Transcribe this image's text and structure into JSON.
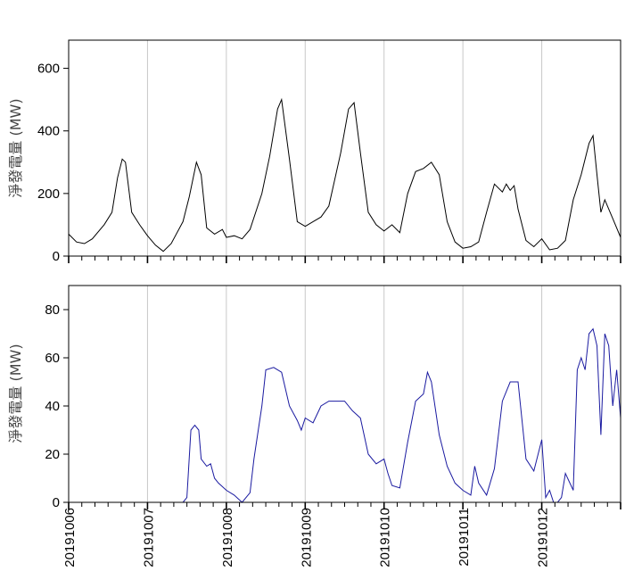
{
  "chart_data": [
    {
      "type": "line",
      "ylabel": "淨發電量 (MW)",
      "ylim": [
        0,
        690
      ],
      "yticks": [
        0,
        200,
        400,
        600
      ],
      "xlim": [
        0,
        7
      ],
      "grid": "vertical",
      "color": "#000000",
      "series": [
        {
          "x": [
            0,
            0.1,
            0.2,
            0.3,
            0.45,
            0.55,
            0.62,
            0.68,
            0.72,
            0.8,
            0.9,
            1.0,
            1.1,
            1.2,
            1.3,
            1.45,
            1.53,
            1.62,
            1.68,
            1.75,
            1.85,
            1.95,
            2.0,
            2.1,
            2.2,
            2.3,
            2.45,
            2.55,
            2.65,
            2.7,
            2.8,
            2.9,
            3.0,
            3.1,
            3.2,
            3.3,
            3.45,
            3.55,
            3.62,
            3.7,
            3.8,
            3.9,
            4.0,
            4.1,
            4.2,
            4.3,
            4.4,
            4.5,
            4.6,
            4.7,
            4.8,
            4.9,
            5.0,
            5.1,
            5.2,
            5.3,
            5.4,
            5.5,
            5.55,
            5.6,
            5.65,
            5.7,
            5.8,
            5.9,
            6.0,
            6.1,
            6.2,
            6.3,
            6.4,
            6.5,
            6.6,
            6.65,
            6.7,
            6.75,
            6.8,
            6.9,
            7.0
          ],
          "values": [
            70,
            45,
            40,
            55,
            100,
            140,
            250,
            310,
            300,
            140,
            100,
            65,
            35,
            15,
            40,
            110,
            190,
            300,
            260,
            90,
            70,
            85,
            60,
            65,
            55,
            85,
            200,
            320,
            470,
            500,
            310,
            110,
            95,
            110,
            125,
            160,
            330,
            470,
            490,
            330,
            140,
            100,
            80,
            100,
            75,
            200,
            270,
            280,
            300,
            260,
            110,
            45,
            25,
            30,
            45,
            140,
            230,
            205,
            230,
            210,
            225,
            150,
            50,
            30,
            55,
            20,
            25,
            50,
            180,
            260,
            360,
            385,
            260,
            140,
            180,
            120,
            60
          ]
        }
      ]
    },
    {
      "type": "line",
      "ylabel": "淨發電量 (MW)",
      "ylim": [
        0,
        90
      ],
      "yticks": [
        0,
        20,
        40,
        60,
        80
      ],
      "xlim": [
        0,
        7
      ],
      "grid": "vertical",
      "color": "#1a1aa0",
      "categories": [
        "20191006",
        "20191007",
        "20191008",
        "20191009",
        "20191010",
        "20191011",
        "20191012"
      ],
      "series": [
        {
          "x": [
            0,
            1.45,
            1.5,
            1.55,
            1.6,
            1.65,
            1.68,
            1.75,
            1.8,
            1.85,
            1.9,
            2.0,
            2.1,
            2.2,
            2.3,
            2.35,
            2.45,
            2.5,
            2.6,
            2.7,
            2.8,
            2.9,
            2.95,
            3.0,
            3.1,
            3.2,
            3.3,
            3.4,
            3.5,
            3.6,
            3.7,
            3.8,
            3.9,
            4.0,
            4.05,
            4.1,
            4.2,
            4.3,
            4.4,
            4.5,
            4.55,
            4.6,
            4.7,
            4.8,
            4.9,
            5.0,
            5.1,
            5.15,
            5.2,
            5.3,
            5.4,
            5.5,
            5.55,
            5.6,
            5.7,
            5.8,
            5.9,
            6.0,
            6.05,
            6.1,
            6.15,
            6.2,
            6.25,
            6.3,
            6.4,
            6.45,
            6.5,
            6.55,
            6.6,
            6.65,
            6.7,
            6.75,
            6.8,
            6.85,
            6.9,
            6.95,
            7.0
          ],
          "values": [
            0,
            0,
            2,
            30,
            32,
            30,
            18,
            15,
            16,
            10,
            8,
            5,
            3,
            0,
            4,
            18,
            40,
            55,
            56,
            54,
            40,
            34,
            30,
            35,
            33,
            40,
            42,
            42,
            42,
            38,
            35,
            20,
            16,
            18,
            12,
            7,
            6,
            25,
            42,
            45,
            54,
            50,
            28,
            15,
            8,
            5,
            3,
            15,
            8,
            3,
            14,
            42,
            46,
            50,
            50,
            18,
            13,
            26,
            2,
            5,
            0,
            0,
            2,
            12,
            5,
            55,
            60,
            55,
            70,
            72,
            65,
            28,
            70,
            65,
            40,
            55,
            35
          ]
        }
      ]
    }
  ]
}
